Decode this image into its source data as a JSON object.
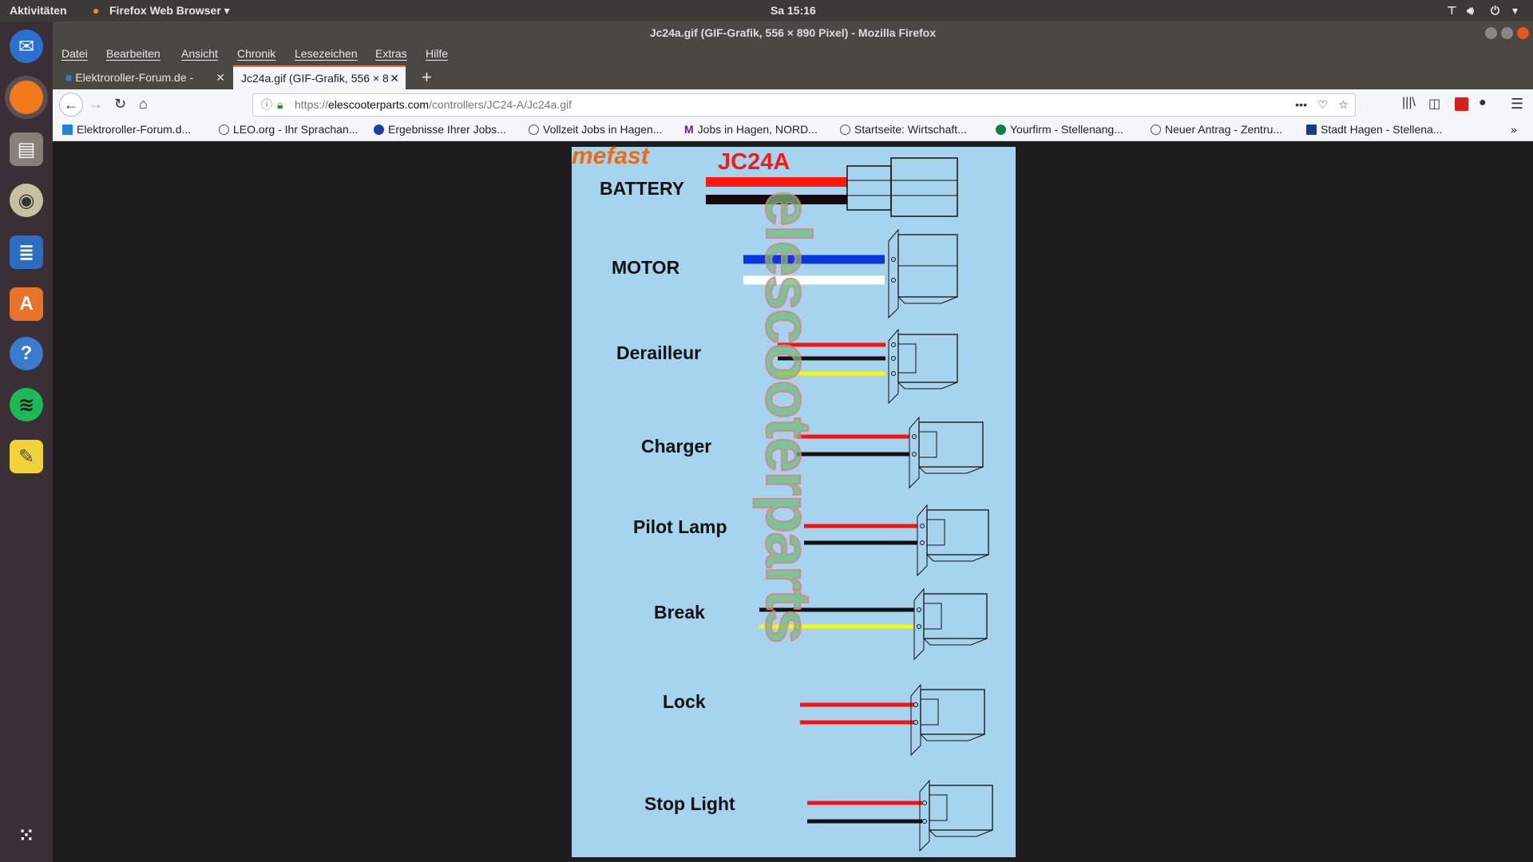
{
  "topbar": {
    "activities": "Aktivitäten",
    "app_menu": "Firefox Web Browser",
    "clock": "Sa 15:16"
  },
  "window": {
    "title": "Jc24a.gif (GIF-Grafik, 556 × 890 Pixel) - Mozilla Firefox"
  },
  "menu": [
    "Datei",
    "Bearbeiten",
    "Ansicht",
    "Chronik",
    "Lesezeichen",
    "Extras",
    "Hilfe"
  ],
  "tabs": [
    {
      "label": "Elektroroller-Forum.de -"
    },
    {
      "label": "Jc24a.gif (GIF-Grafik, 556 × 8"
    }
  ],
  "url": {
    "prefix": "https://",
    "domain": "elescooterparts.com",
    "path": "/controllers/JC24-A/Jc24a.gif"
  },
  "bookmarks": [
    "Elektroroller-Forum.d...",
    "LEO.org - Ihr Sprachan...",
    "Ergebnisse Ihrer Jobs...",
    "Vollzeit Jobs in Hagen...",
    "Jobs in Hagen, NORD...",
    "Startseite: Wirtschaft...",
    "Yourfirm - Stellenang...",
    "Neuer Antrag - Zentru...",
    "Stadt Hagen - Stellena..."
  ],
  "dock": [
    "thunderbird-icon",
    "firefox-icon",
    "files-icon",
    "rhythmbox-icon",
    "writer-icon",
    "software-icon",
    "help-icon",
    "spotify-icon",
    "notes-icon",
    "app-grid-icon"
  ],
  "image": {
    "brand": "mefast",
    "model": "JC24A",
    "watermark": "elescooterparts",
    "connectors": [
      {
        "label": "BATTERY",
        "wires": [
          "#ff1a10",
          "#150808"
        ]
      },
      {
        "label": "MOTOR",
        "wires": [
          "#0638e0",
          "#ffffff"
        ]
      },
      {
        "label": "Derailleur",
        "wires": [
          "#ff1010",
          "#111111",
          "#f8f800"
        ]
      },
      {
        "label": "Charger",
        "wires": [
          "#ff1010",
          "#111111"
        ]
      },
      {
        "label": "Pilot Lamp",
        "wires": [
          "#ff1010",
          "#111111"
        ]
      },
      {
        "label": "Break",
        "wires": [
          "#111111",
          "#f8f800"
        ]
      },
      {
        "label": "Lock",
        "wires": [
          "#ff1010",
          "#ff1010"
        ]
      },
      {
        "label": "Stop Light",
        "wires": [
          "#ff1010",
          "#111111"
        ]
      }
    ]
  }
}
